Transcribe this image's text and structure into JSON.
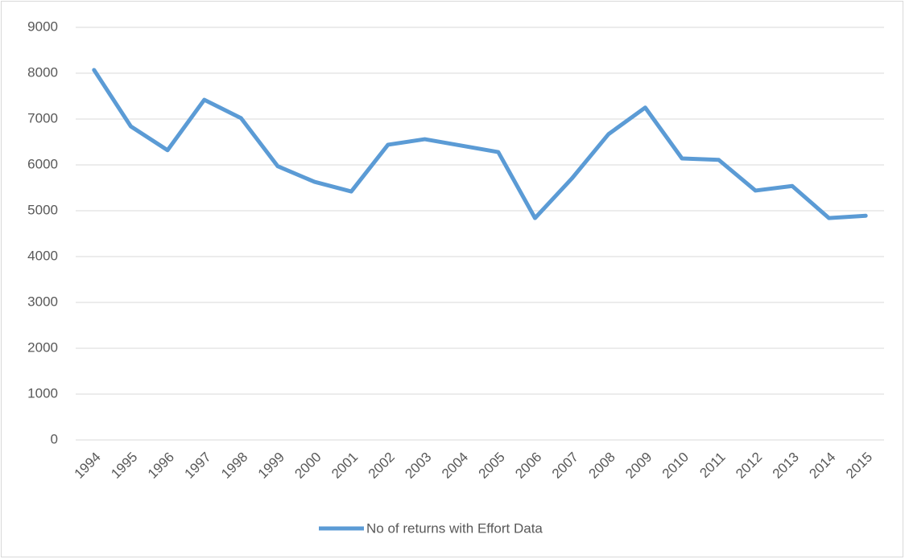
{
  "chart_data": {
    "type": "line",
    "categories": [
      "1994",
      "1995",
      "1996",
      "1997",
      "1998",
      "1999",
      "2000",
      "2001",
      "2002",
      "2003",
      "2004",
      "2005",
      "2006",
      "2007",
      "2008",
      "2009",
      "2010",
      "2011",
      "2012",
      "2013",
      "2014",
      "2015"
    ],
    "series": [
      {
        "name": "No of returns with Effort Data",
        "color": "#5b9bd5",
        "values": [
          8070,
          6840,
          6320,
          7420,
          7020,
          5970,
          5630,
          5420,
          6440,
          6560,
          6420,
          6280,
          4840,
          5700,
          6670,
          7250,
          6140,
          6110,
          5440,
          5540,
          4840,
          4890
        ]
      }
    ],
    "ylim": [
      0,
      9000
    ],
    "yticks": [
      0,
      1000,
      2000,
      3000,
      4000,
      5000,
      6000,
      7000,
      8000,
      9000
    ],
    "grid": true,
    "legend": "bottom"
  }
}
